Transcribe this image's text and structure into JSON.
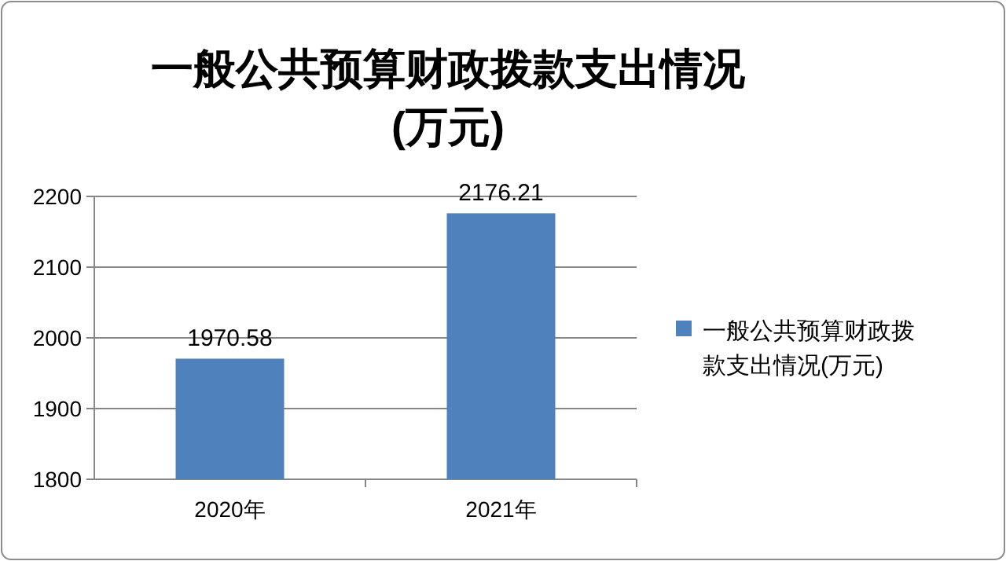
{
  "chart_data": {
    "type": "bar",
    "title": "一般公共预算财政拨款支出情况(万元)",
    "categories": [
      "2020年",
      "2021年"
    ],
    "series": [
      {
        "name": "一般公共预算财政拨款支出情况(万元)",
        "color": "#4f81bd",
        "values": [
          1970.58,
          2176.21
        ]
      }
    ],
    "ylim": [
      1800,
      2200
    ],
    "yticks": [
      1800,
      1900,
      2000,
      2100,
      2200
    ],
    "grid": "y",
    "legend": "right",
    "data_labels": true
  }
}
